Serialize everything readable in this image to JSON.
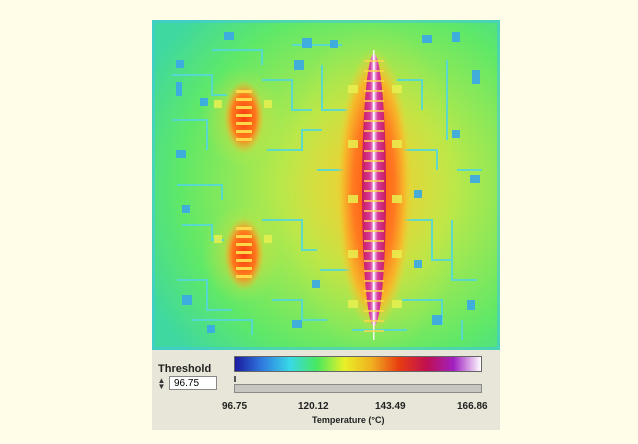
{
  "threshold": {
    "label": "Threshold",
    "value": "96.75"
  },
  "colorbar": {
    "ticks": [
      "96.75",
      "120.12",
      "143.49",
      "166.86"
    ],
    "axis_title": "Temperature (°C)",
    "colors": [
      "#1a1aa0",
      "#2f7be0",
      "#38d8e8",
      "#48e860",
      "#e8f028",
      "#f0b020",
      "#e83c10",
      "#c01050",
      "#a020c0",
      "#ffffff"
    ]
  },
  "colors": {
    "page_background": "#fffde8",
    "panel_background": "#e8e6d8"
  }
}
